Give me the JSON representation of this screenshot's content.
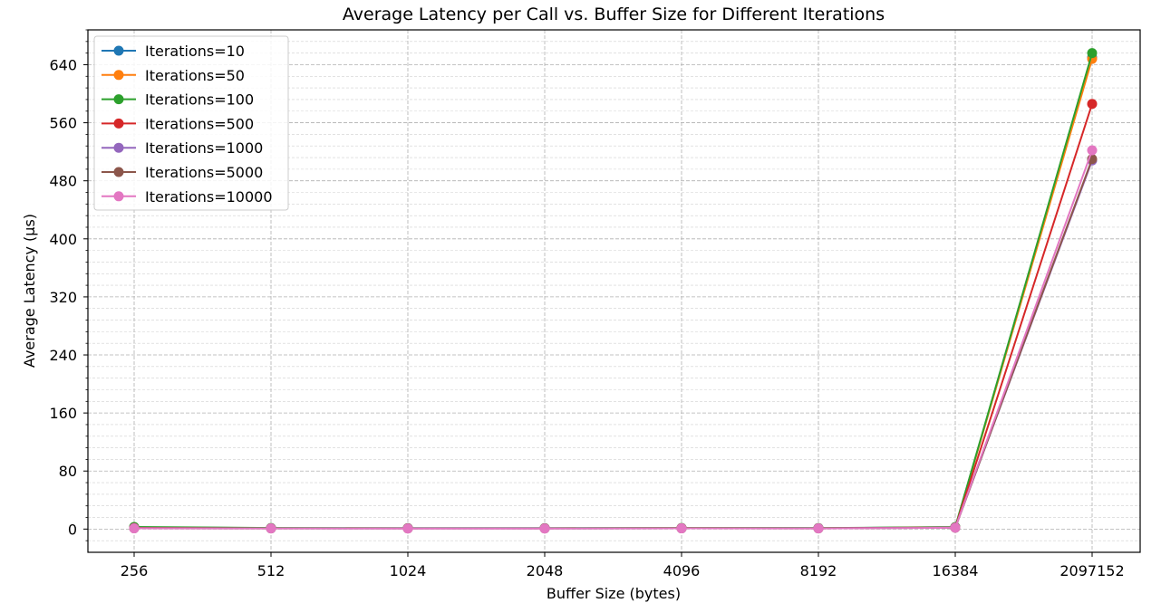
{
  "chart_data": {
    "type": "line",
    "title": "Average Latency per Call vs. Buffer Size for Different Iterations",
    "xlabel": "Buffer Size (bytes)",
    "ylabel": "Average Latency (µs)",
    "categories": [
      "256",
      "512",
      "1024",
      "2048",
      "4096",
      "8192",
      "16384",
      "2097152"
    ],
    "yticks": [
      0,
      80,
      160,
      240,
      320,
      400,
      480,
      560,
      640
    ],
    "ylim": [
      -32,
      688
    ],
    "grid": true,
    "minor_grid": true,
    "legend_position": "top-left",
    "series": [
      {
        "name": "Iterations=10",
        "color": "#1f77b4",
        "values": [
          2.5,
          1.3,
          1.2,
          1.2,
          1.4,
          1.3,
          2.6,
          650
        ]
      },
      {
        "name": "Iterations=50",
        "color": "#ff7f0e",
        "values": [
          2.0,
          1.2,
          1.1,
          1.1,
          1.3,
          1.2,
          2.4,
          648
        ]
      },
      {
        "name": "Iterations=100",
        "color": "#2ca02c",
        "values": [
          3.0,
          1.5,
          1.3,
          1.3,
          1.5,
          1.4,
          2.8,
          656
        ]
      },
      {
        "name": "Iterations=500",
        "color": "#d62728",
        "values": [
          1.5,
          1.1,
          1.0,
          1.0,
          1.2,
          1.1,
          2.2,
          586
        ]
      },
      {
        "name": "Iterations=1000",
        "color": "#9467bd",
        "values": [
          1.2,
          1.0,
          0.9,
          0.9,
          1.1,
          1.0,
          2.0,
          508
        ]
      },
      {
        "name": "Iterations=5000",
        "color": "#8c564b",
        "values": [
          1.1,
          0.9,
          0.9,
          0.9,
          1.0,
          0.9,
          1.9,
          510
        ]
      },
      {
        "name": "Iterations=10000",
        "color": "#e377c2",
        "values": [
          1.0,
          0.9,
          0.8,
          0.8,
          1.0,
          0.9,
          1.8,
          522
        ]
      }
    ]
  }
}
